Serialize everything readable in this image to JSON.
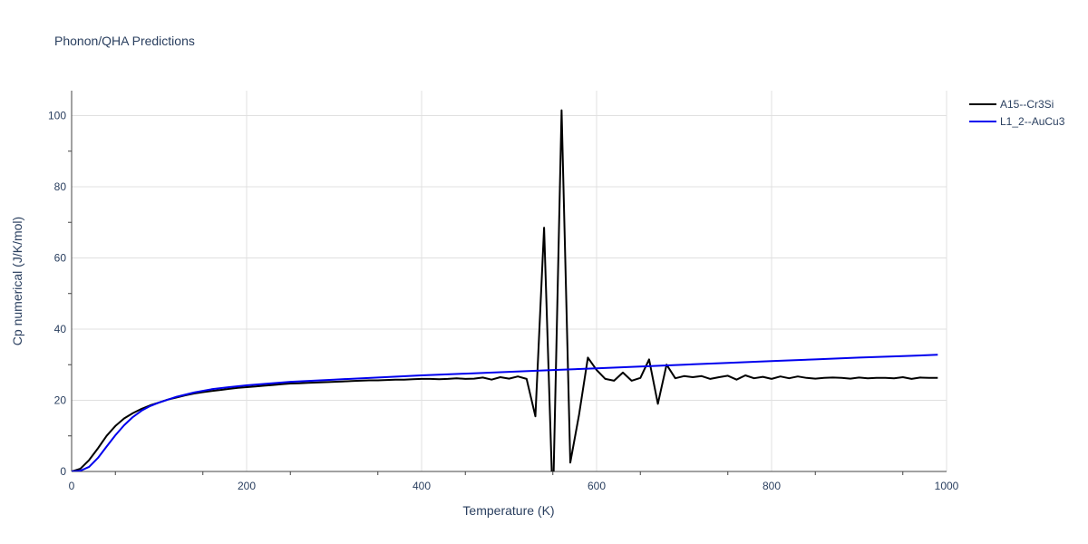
{
  "chart_data": {
    "type": "line",
    "title": "Phonon/QHA Predictions",
    "xlabel": "Temperature (K)",
    "ylabel": "Cp numerical (J/K/mol)",
    "xlim": [
      0,
      1000
    ],
    "ylim": [
      0,
      107
    ],
    "xticks": [
      0,
      200,
      400,
      600,
      800,
      1000
    ],
    "yticks": [
      0,
      20,
      40,
      60,
      80,
      100
    ],
    "grid": true,
    "legend_position": "top-right",
    "series": [
      {
        "name": "A15--Cr3Si",
        "color": "#000000",
        "x": [
          0,
          10,
          20,
          30,
          40,
          50,
          60,
          70,
          80,
          90,
          100,
          110,
          120,
          130,
          140,
          150,
          160,
          170,
          180,
          190,
          200,
          210,
          220,
          230,
          240,
          250,
          260,
          270,
          280,
          290,
          300,
          310,
          320,
          330,
          340,
          350,
          360,
          370,
          380,
          390,
          400,
          410,
          420,
          430,
          440,
          450,
          460,
          470,
          480,
          490,
          500,
          510,
          520,
          530,
          540,
          550,
          560,
          570,
          580,
          590,
          600,
          610,
          620,
          630,
          640,
          650,
          660,
          670,
          680,
          690,
          700,
          710,
          720,
          730,
          740,
          750,
          760,
          770,
          780,
          790,
          800,
          810,
          820,
          830,
          840,
          850,
          860,
          870,
          880,
          890,
          900,
          910,
          920,
          930,
          940,
          950,
          960,
          970,
          980,
          990
        ],
        "values": [
          0,
          0.8,
          3.2,
          6.5,
          10,
          12.8,
          14.9,
          16.4,
          17.6,
          18.6,
          19.4,
          20.2,
          20.8,
          21.4,
          21.9,
          22.3,
          22.6,
          22.9,
          23.2,
          23.5,
          23.7,
          23.9,
          24.1,
          24.3,
          24.5,
          24.7,
          24.8,
          24.9,
          25.0,
          25.1,
          25.2,
          25.3,
          25.4,
          25.5,
          25.6,
          25.6,
          25.7,
          25.8,
          25.8,
          25.9,
          26.0,
          26.0,
          25.9,
          26.0,
          26.2,
          26.0,
          26.1,
          26.4,
          25.8,
          26.5,
          26.1,
          26.7,
          26.0,
          15.5,
          68.5,
          -10,
          101.5,
          2.5,
          16,
          32,
          28.5,
          26,
          25.5,
          27.8,
          25.5,
          26.3,
          31.5,
          19,
          30,
          26.2,
          26.8,
          26.5,
          26.8,
          26.0,
          26.5,
          26.9,
          25.8,
          27.0,
          26.2,
          26.6,
          26.0,
          26.7,
          26.2,
          26.7,
          26.3,
          26.1,
          26.3,
          26.4,
          26.3,
          26.1,
          26.4,
          26.2,
          26.3,
          26.3,
          26.2,
          26.5,
          26.0,
          26.4,
          26.3,
          26.3
        ]
      },
      {
        "name": "L1_2--AuCu3",
        "color": "#0000ee",
        "x": [
          0,
          10,
          20,
          30,
          40,
          50,
          60,
          70,
          80,
          90,
          100,
          120,
          140,
          160,
          180,
          200,
          250,
          300,
          350,
          400,
          450,
          500,
          550,
          600,
          650,
          700,
          750,
          800,
          850,
          900,
          950,
          990
        ],
        "values": [
          0,
          0.2,
          1.3,
          3.8,
          7,
          10.2,
          13,
          15.3,
          17.1,
          18.4,
          19.4,
          21,
          22.2,
          23.1,
          23.7,
          24.2,
          25.2,
          25.8,
          26.4,
          27.0,
          27.5,
          28.0,
          28.5,
          29.0,
          29.5,
          30.0,
          30.5,
          31.0,
          31.5,
          32.0,
          32.4,
          32.8
        ]
      }
    ]
  }
}
